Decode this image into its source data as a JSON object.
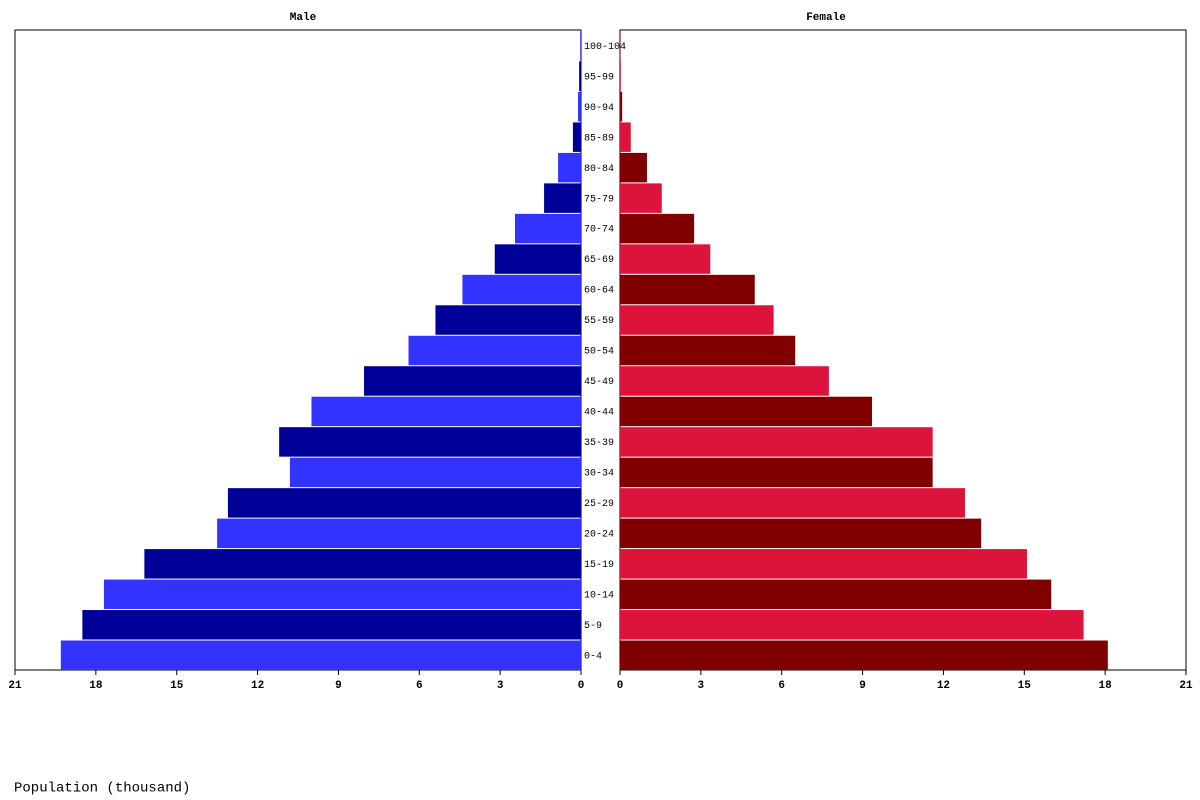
{
  "chart_data": {
    "type": "pyramid",
    "categories": [
      "0-4",
      "5-9",
      "10-14",
      "15-19",
      "20-24",
      "25-29",
      "30-34",
      "35-39",
      "40-44",
      "45-49",
      "50-54",
      "55-59",
      "60-64",
      "65-69",
      "70-74",
      "75-79",
      "80-84",
      "85-89",
      "90-94",
      "95-99",
      "100-104"
    ],
    "series": [
      {
        "name": "Male",
        "colors": [
          "#3333ff",
          "#000099"
        ],
        "values": [
          19.3,
          18.5,
          17.7,
          16.2,
          13.5,
          13.1,
          10.8,
          11.2,
          10.0,
          8.05,
          6.4,
          5.4,
          4.4,
          3.2,
          2.45,
          1.37,
          0.85,
          0.3,
          0.11,
          0.07,
          0.03
        ]
      },
      {
        "name": "Female",
        "colors": [
          "#800000",
          "#dc143c"
        ],
        "values": [
          18.1,
          17.2,
          16.0,
          15.1,
          13.4,
          12.8,
          11.6,
          11.6,
          9.35,
          7.75,
          6.5,
          5.7,
          5.0,
          3.35,
          2.75,
          1.55,
          1.0,
          0.4,
          0.08,
          0.03,
          0.02
        ]
      }
    ],
    "xlim": [
      0,
      21
    ],
    "xticks": [
      0,
      3,
      6,
      9,
      12,
      15,
      18,
      21
    ],
    "xlabel": "Population (thousand)"
  }
}
